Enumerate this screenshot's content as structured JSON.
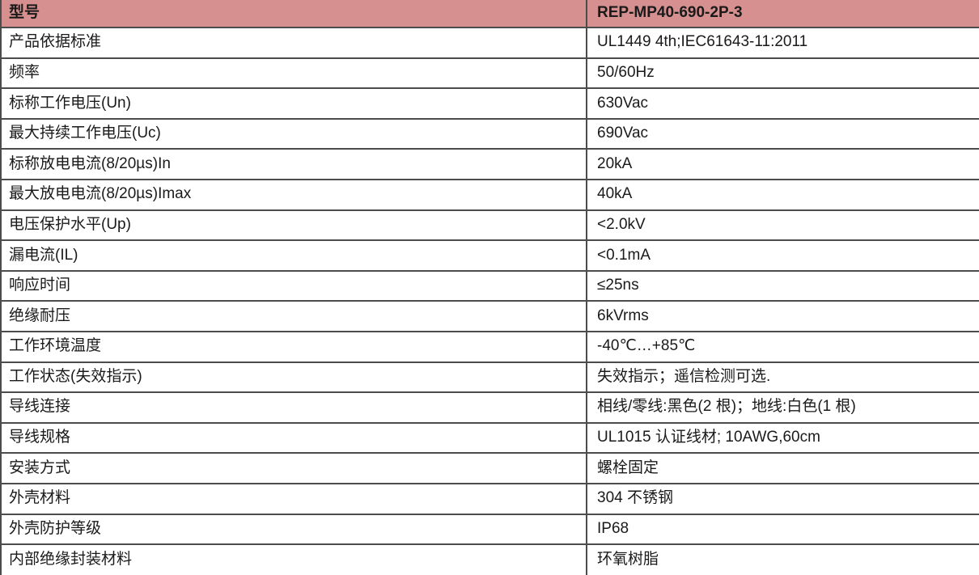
{
  "colors": {
    "header_bg": "#d6908f",
    "border": "#4c4c4c",
    "text": "#1a1a1a"
  },
  "table": {
    "header": {
      "label": "型号",
      "value": "REP-MP40-690-2P-3"
    },
    "rows": [
      {
        "label": "产品依据标准",
        "value": "UL1449 4th;IEC61643-11:2011"
      },
      {
        "label": "频率",
        "value": "50/60Hz"
      },
      {
        "label": "标称工作电压(Un)",
        "value": "630Vac"
      },
      {
        "label": "最大持续工作电压(Uc)",
        "value": "690Vac"
      },
      {
        "label": "标称放电电流(8/20µs)In",
        "value": "20kA"
      },
      {
        "label": "最大放电电流(8/20µs)Imax",
        "value": "40kA"
      },
      {
        "label": "电压保护水平(Up)",
        "value": "<2.0kV"
      },
      {
        "label": "漏电流(IL)",
        "value": "<0.1mA"
      },
      {
        "label": "响应时间",
        "value": "≤25ns"
      },
      {
        "label": "绝缘耐压",
        "value": "6kVrms"
      },
      {
        "label": "工作环境温度",
        "value": "-40℃…+85℃"
      },
      {
        "label": "工作状态(失效指示)",
        "value": "失效指示；遥信检测可选."
      },
      {
        "label": "导线连接",
        "value": "相线/零线:黑色(2 根)；地线:白色(1 根)"
      },
      {
        "label": "导线规格",
        "value": "UL1015 认证线材; 10AWG,60cm"
      },
      {
        "label": "安装方式",
        "value": "螺栓固定"
      },
      {
        "label": "外壳材料",
        "value": "304 不锈钢"
      },
      {
        "label": "外壳防护等级",
        "value": "IP68"
      },
      {
        "label": "内部绝缘封装材料",
        "value": "环氧树脂"
      }
    ]
  }
}
